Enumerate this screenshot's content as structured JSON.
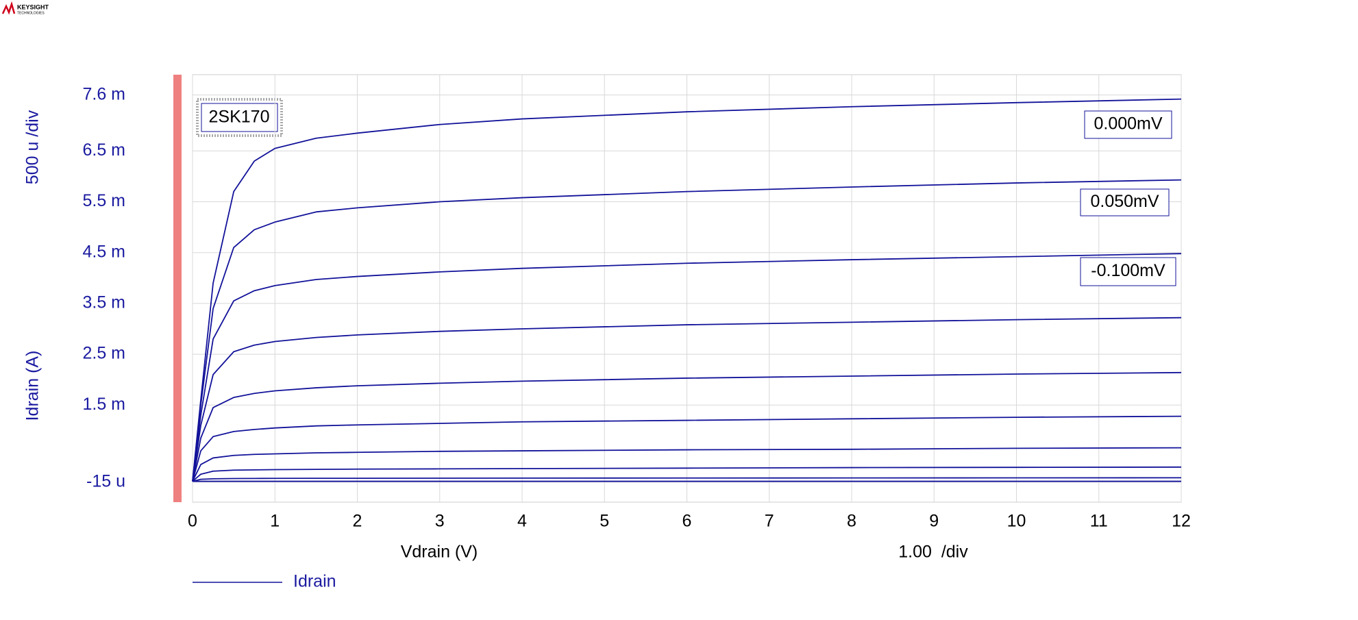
{
  "brand": {
    "name": "KEYSIGHT",
    "tagline": "TECHNOLOGIES"
  },
  "chart_data": {
    "type": "line",
    "title": "2SK170",
    "y_label": "Idrain (A)",
    "y_scale_label": "500 u /div",
    "x_label": "Vdrain (V)",
    "x_scale_label": "1.00  /div",
    "annotations": [
      "0.000mV",
      "0.050mV",
      "-0.100mV"
    ],
    "grid": true,
    "xlim": [
      0,
      12
    ],
    "xticks": [
      0,
      1,
      2,
      3,
      4,
      5,
      6,
      7,
      8,
      9,
      10,
      11,
      12
    ],
    "ylim": [
      -0.00041,
      0.008
    ],
    "yticks": [
      {
        "value": 0.0076,
        "label": "7.6 m"
      },
      {
        "value": 0.0065,
        "label": "6.5 m"
      },
      {
        "value": 0.0055,
        "label": "5.5 m"
      },
      {
        "value": 0.0045,
        "label": "4.5 m"
      },
      {
        "value": 0.0035,
        "label": "3.5 m"
      },
      {
        "value": 0.0025,
        "label": "2.5 m"
      },
      {
        "value": 0.0015,
        "label": "1.5 m"
      },
      {
        "value": -1.5e-05,
        "label": "-15 u"
      }
    ],
    "x": [
      0,
      0.1,
      0.25,
      0.5,
      0.75,
      1,
      1.5,
      2,
      3,
      4,
      6,
      8,
      10,
      12
    ],
    "series": [
      {
        "name": "Idrain",
        "color": "#12129a",
        "values": [
          0,
          0.0016,
          0.0039,
          0.0057,
          0.0063,
          0.00655,
          0.00675,
          0.00685,
          0.00702,
          0.00713,
          0.00727,
          0.00737,
          0.00745,
          0.00752
        ]
      },
      {
        "color": "#12129a",
        "values": [
          0,
          0.0015,
          0.0034,
          0.0046,
          0.00495,
          0.0051,
          0.0053,
          0.00538,
          0.0055,
          0.00558,
          0.0057,
          0.00579,
          0.00587,
          0.00593
        ]
      },
      {
        "color": "#12129a",
        "values": [
          0,
          0.0013,
          0.0028,
          0.00355,
          0.00375,
          0.00385,
          0.00397,
          0.00403,
          0.00412,
          0.00419,
          0.00429,
          0.00436,
          0.00442,
          0.00448
        ]
      },
      {
        "color": "#12129a",
        "values": [
          0,
          0.0011,
          0.0021,
          0.00255,
          0.00268,
          0.00275,
          0.00283,
          0.00288,
          0.00295,
          0.003,
          0.00308,
          0.00313,
          0.00318,
          0.00322
        ]
      },
      {
        "color": "#12129a",
        "values": [
          0,
          0.00085,
          0.00145,
          0.00165,
          0.00173,
          0.00178,
          0.00184,
          0.00188,
          0.00193,
          0.00197,
          0.00203,
          0.00207,
          0.00211,
          0.00214
        ]
      },
      {
        "color": "#12129a",
        "values": [
          0,
          0.0006,
          0.00088,
          0.00098,
          0.00102,
          0.00105,
          0.00109,
          0.00111,
          0.00114,
          0.00117,
          0.0012,
          0.00123,
          0.00126,
          0.00128
        ]
      },
      {
        "color": "#12129a",
        "values": [
          0,
          0.00033,
          0.00046,
          0.00051,
          0.00053,
          0.00054,
          0.00056,
          0.00057,
          0.00059,
          0.0006,
          0.00062,
          0.00063,
          0.00065,
          0.00066
        ]
      },
      {
        "color": "#12129a",
        "values": [
          0,
          0.00014,
          0.0002,
          0.00022,
          0.000225,
          0.00023,
          0.000235,
          0.00024,
          0.000245,
          0.00025,
          0.00026,
          0.00027,
          0.000275,
          0.00028
        ]
      },
      {
        "color": "#12129a",
        "values": [
          0,
          4e-05,
          5e-05,
          5.5e-05,
          5.7e-05,
          5.8e-05,
          6e-05,
          6e-05,
          6.2e-05,
          6.3e-05,
          6.5e-05,
          6.7e-05,
          6.8e-05,
          7e-05
        ]
      },
      {
        "color": "#12129a",
        "values": [
          0,
          0,
          0,
          0,
          0,
          0,
          0,
          0,
          0,
          0,
          0,
          0,
          0,
          0
        ]
      }
    ]
  }
}
